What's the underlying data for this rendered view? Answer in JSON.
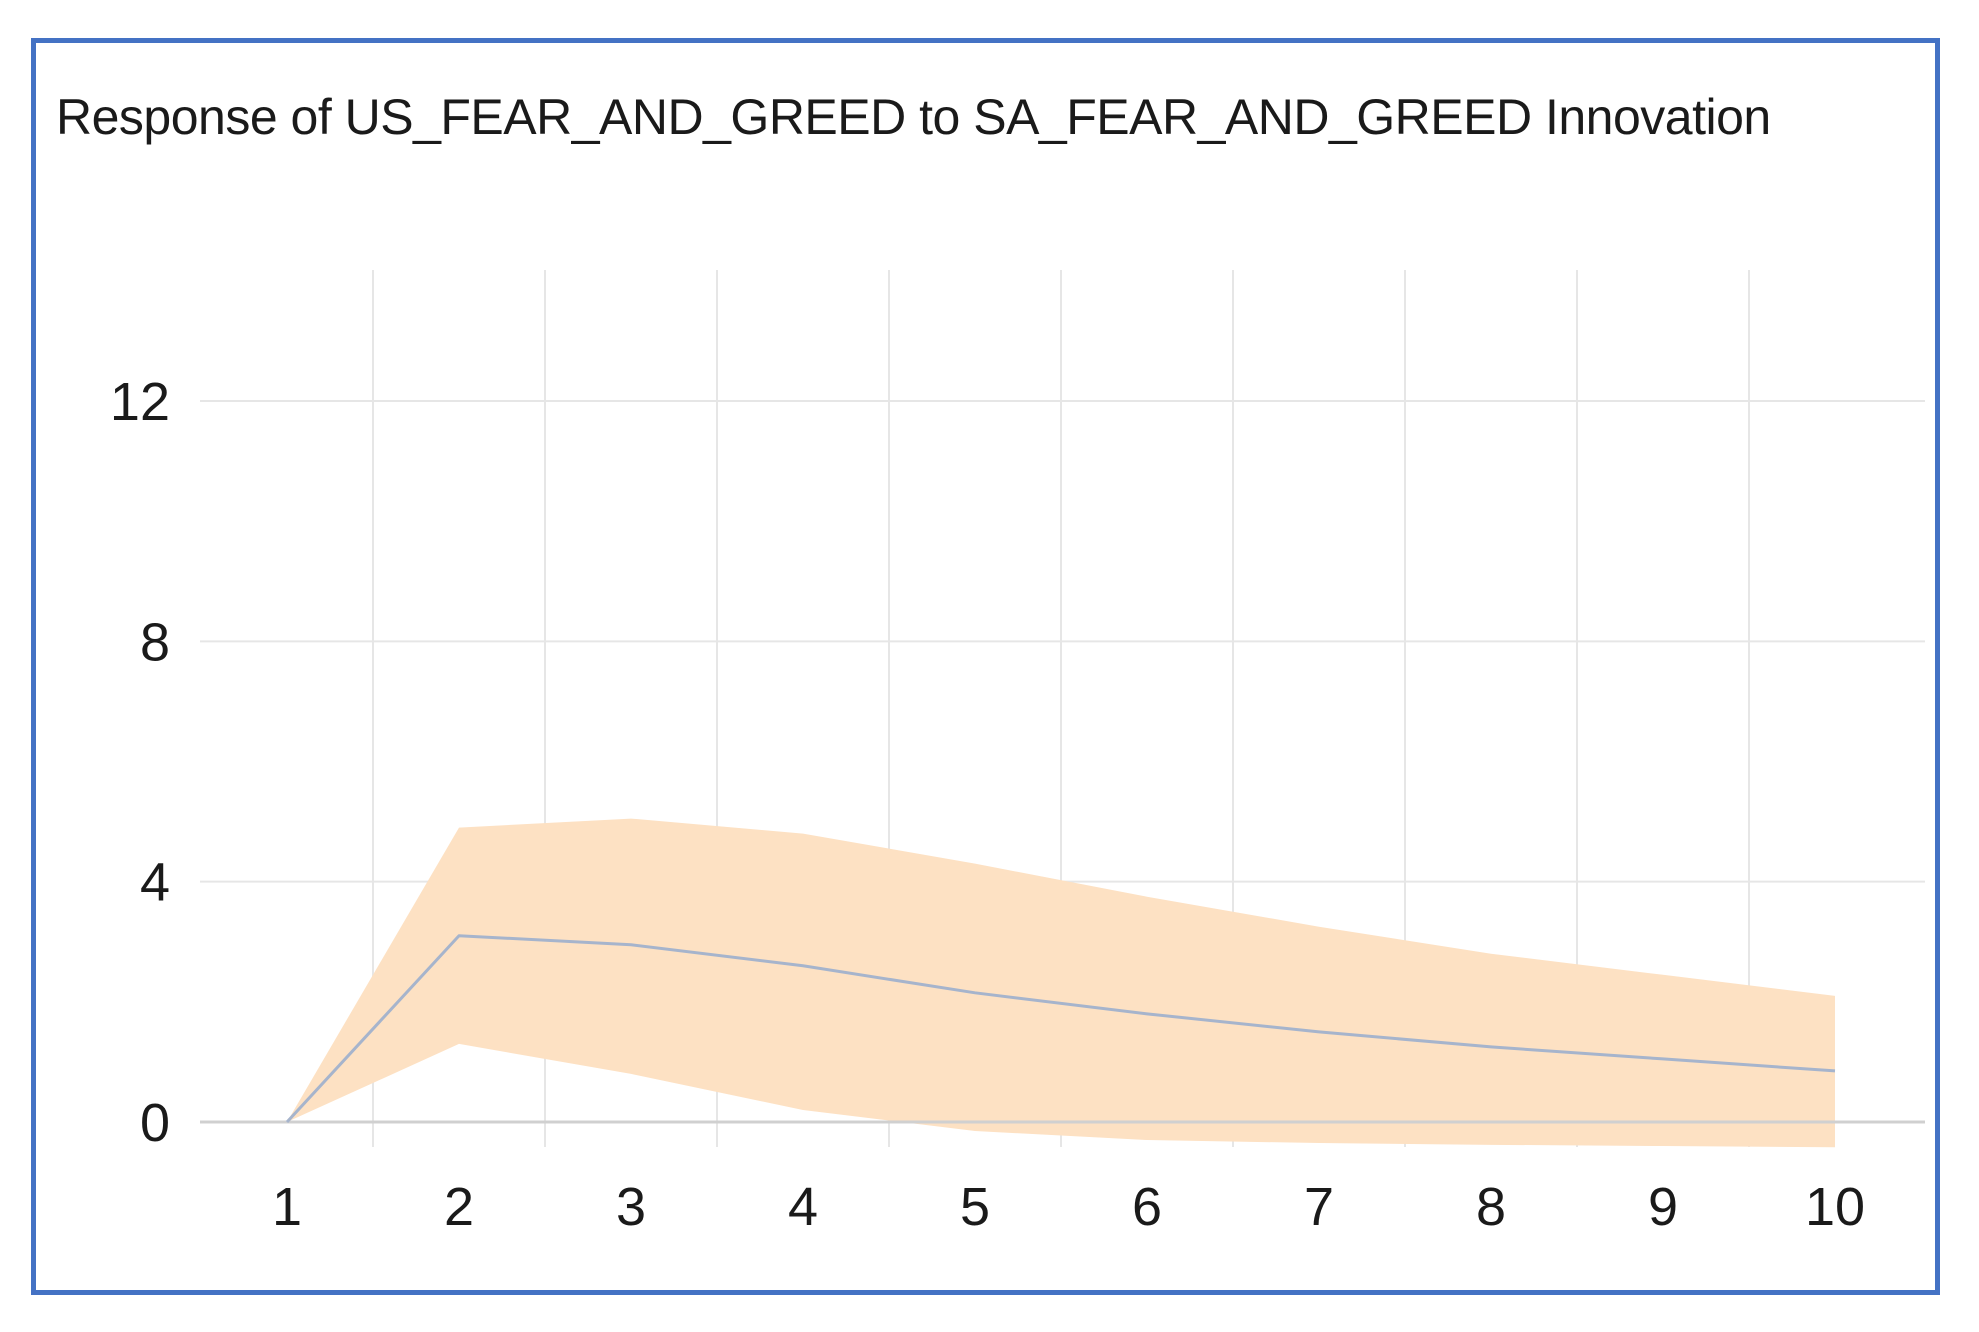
{
  "chart_data": {
    "type": "line",
    "title": "Response of US_FEAR_AND_GREED to SA_FEAR_AND_GREED Innovation",
    "xlabel": "",
    "ylabel": "",
    "x": [
      1,
      2,
      3,
      4,
      5,
      6,
      7,
      8,
      9,
      10
    ],
    "x_tick_labels": [
      "1",
      "2",
      "3",
      "4",
      "5",
      "6",
      "7",
      "8",
      "9",
      "10"
    ],
    "y_ticks": [
      0,
      4,
      8,
      12
    ],
    "y_tick_labels": [
      "0",
      "4",
      "8",
      "12"
    ],
    "ylim": [
      -0.5,
      14.2
    ],
    "xlim": [
      0.5,
      10.5
    ],
    "grid": true,
    "series": [
      {
        "values": [
          0.0,
          3.1,
          2.95,
          2.6,
          2.15,
          1.8,
          1.5,
          1.25,
          1.05,
          0.85
        ],
        "color": "#a6b4cc"
      }
    ],
    "band": {
      "upper": [
        0.0,
        4.9,
        5.05,
        4.8,
        4.3,
        3.75,
        3.25,
        2.8,
        2.45,
        2.1
      ],
      "lower": [
        0.0,
        1.3,
        0.8,
        0.2,
        -0.15,
        -0.3,
        -0.35,
        -0.38,
        -0.4,
        -0.42
      ],
      "color": "#fde1c3"
    },
    "colors": {
      "frame": "#4472c4",
      "grid": "#e6e6e6",
      "zero_line": "#d0d0d0"
    }
  }
}
